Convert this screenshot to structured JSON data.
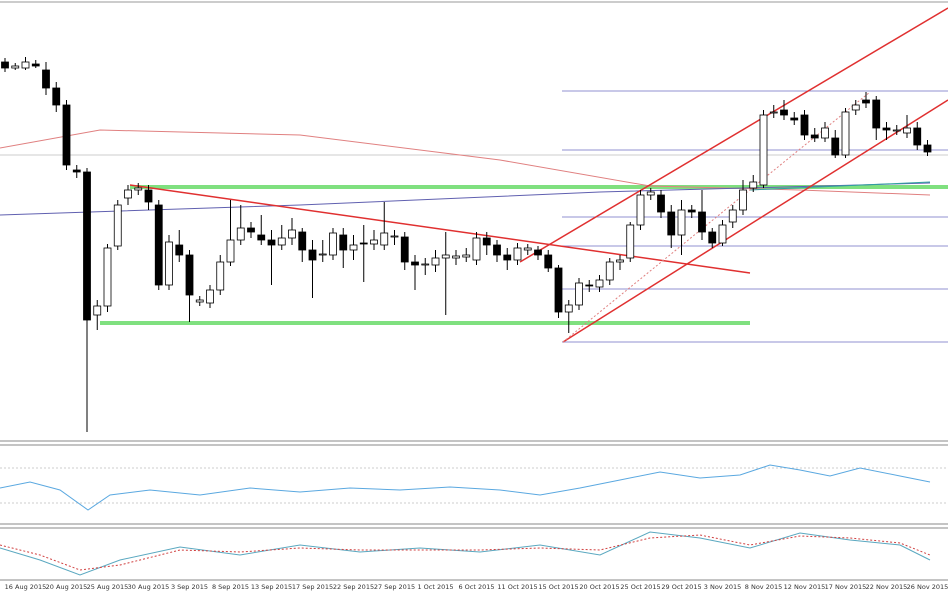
{
  "chart_data": {
    "type": "candlestick",
    "categories": [
      null,
      null,
      "16 Aug 2015",
      null,
      null,
      null,
      "20 Aug 2015",
      null,
      null,
      null,
      "25 Aug 2015",
      null,
      null,
      null,
      "30 Aug 2015",
      null,
      null,
      null,
      "3 Sep 2015",
      null,
      null,
      null,
      "8 Sep 2015",
      null,
      null,
      null,
      "13 Sep 2015",
      null,
      null,
      null,
      "17 Sep 2015",
      null,
      null,
      null,
      "22 Sep 2015",
      null,
      null,
      null,
      "27 Sep 2015",
      null,
      null,
      null,
      "1 Oct 2015",
      null,
      null,
      null,
      "6 Oct 2015",
      null,
      null,
      null,
      "11 Oct 2015",
      null,
      null,
      null,
      "15 Oct 2015",
      null,
      null,
      null,
      "20 Oct 2015",
      null,
      null,
      null,
      "25 Oct 2015",
      null,
      null,
      null,
      "29 Oct 2015",
      null,
      null,
      null,
      "3 Nov 2015",
      null,
      null,
      null,
      "8 Nov 2015",
      null,
      null,
      null,
      "12 Nov 2015",
      null,
      null,
      null,
      "17 Nov 2015",
      null,
      null,
      null,
      "22 Nov 2015",
      null,
      null,
      null,
      "26 Nov 2015"
    ],
    "open": [
      378,
      372,
      372,
      376,
      370,
      352,
      335,
      270,
      268,
      125,
      134,
      194,
      242,
      250,
      250,
      235,
      155,
      195,
      185,
      138,
      137,
      150,
      178,
      200,
      212,
      205,
      200,
      195,
      202,
      208,
      190,
      185,
      185,
      205,
      190,
      197,
      196,
      195,
      203,
      203,
      178,
      175,
      175,
      182,
      182,
      183,
      180,
      202,
      195,
      185,
      180,
      190,
      190,
      185,
      172,
      128,
      135,
      155,
      153,
      160,
      178,
      182,
      215,
      245,
      245,
      228,
      205,
      230,
      228,
      208,
      197,
      218,
      230,
      252,
      255,
      327,
      330,
      322,
      325,
      305,
      302,
      302,
      285,
      330,
      340,
      340,
      312,
      310,
      307,
      312,
      295
    ],
    "high": [
      382,
      377,
      383,
      380,
      378,
      358,
      340,
      275,
      272,
      140,
      196,
      240,
      255,
      257,
      255,
      240,
      205,
      210,
      190,
      144,
      155,
      185,
      240,
      235,
      218,
      225,
      210,
      215,
      222,
      212,
      200,
      200,
      212,
      212,
      205,
      215,
      210,
      238,
      210,
      208,
      185,
      182,
      190,
      208,
      190,
      192,
      208,
      208,
      200,
      192,
      197,
      196,
      194,
      190,
      175,
      140,
      162,
      160,
      165,
      182,
      185,
      218,
      250,
      252,
      250,
      235,
      240,
      235,
      250,
      212,
      220,
      235,
      260,
      265,
      330,
      335,
      340,
      328,
      330,
      312,
      318,
      310,
      332,
      340,
      348,
      344,
      318,
      315,
      325,
      318,
      300
    ],
    "low": [
      368,
      370,
      370,
      372,
      345,
      328,
      270,
      262,
      8,
      110,
      128,
      190,
      235,
      245,
      230,
      150,
      150,
      178,
      118,
      134,
      132,
      145,
      174,
      195,
      202,
      195,
      155,
      190,
      195,
      178,
      142,
      178,
      180,
      172,
      180,
      158,
      190,
      190,
      195,
      170,
      150,
      165,
      168,
      125,
      175,
      178,
      175,
      185,
      178,
      170,
      175,
      185,
      180,
      168,
      122,
      107,
      130,
      148,
      148,
      155,
      170,
      178,
      210,
      240,
      222,
      192,
      185,
      222,
      200,
      192,
      194,
      212,
      225,
      248,
      252,
      322,
      320,
      315,
      300,
      298,
      298,
      282,
      282,
      325,
      332,
      300,
      300,
      305,
      302,
      290,
      284
    ],
    "close": [
      372,
      374,
      378,
      374,
      352,
      335,
      275,
      268,
      120,
      134,
      192,
      235,
      250,
      252,
      238,
      155,
      198,
      185,
      145,
      140,
      150,
      178,
      200,
      212,
      208,
      200,
      195,
      202,
      210,
      190,
      180,
      186,
      207,
      190,
      195,
      196,
      200,
      207,
      204,
      178,
      175,
      176,
      182,
      185,
      184,
      185,
      202,
      195,
      185,
      180,
      192,
      192,
      185,
      172,
      128,
      135,
      157,
      154,
      160,
      178,
      180,
      215,
      245,
      248,
      228,
      205,
      230,
      228,
      208,
      197,
      215,
      230,
      250,
      258,
      325,
      328,
      325,
      320,
      305,
      302,
      312,
      285,
      328,
      335,
      337,
      312,
      310,
      310,
      312,
      295,
      288
    ],
    "ylim": [
      0,
      440
    ],
    "up_color": "#ffffff",
    "down_color": "#000000"
  }
}
